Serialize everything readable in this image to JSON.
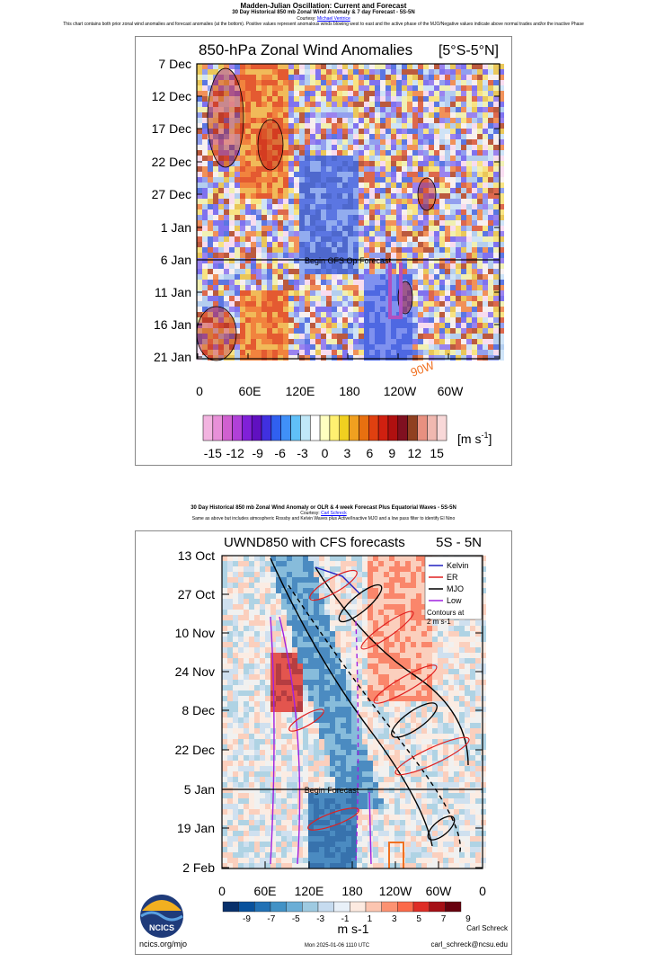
{
  "header": {
    "title": "Madden-Julian Oscillation: Current and Forecast",
    "subtitle": "30 Day Historical 850 mb Zonal Wind Anomaly & 7 day Forecast - 5S-5N",
    "courtesy_prefix": "Courtesy: ",
    "courtesy_name": "Michael Ventrice",
    "description": "This chart contains both prior zonal wind anomalies and forecast anomalies (at the bottom). Positive values represent anomalous winds blowing west to east and the active phase of the MJO/Negative values indicate above normal trades and/or the inactive Phase"
  },
  "section2": {
    "title": "30 Day Historical 850 mb Zonal Wind Anomaly or OLR & 4 week Forecast Plus Equatorial Waves - 5S-5N",
    "courtesy_prefix": "Courtesy: ",
    "courtesy_name": "Carl Schreck",
    "description": "Same as above but includes atmospheric Rossby and Kelvin Waves plus Active/Inactive MJO and a low pass filter to identify El Nino"
  },
  "chart_data": [
    {
      "type": "heatmap",
      "title": "850-hPa Zonal Wind Anomalies",
      "region": "[5°S-5°N]",
      "x_ticks": [
        "0",
        "60E",
        "120E",
        "180",
        "120W",
        "60W"
      ],
      "y_ticks": [
        "7 Dec",
        "12 Dec",
        "17 Dec",
        "22 Dec",
        "27 Dec",
        "1 Jan",
        "6 Jan",
        "11 Jan",
        "16 Jan",
        "21 Jan"
      ],
      "forecast_label": "Begin GFS Op Forecast",
      "annotation": "90W",
      "colorbar_ticks": [
        "-15",
        "-12",
        "-9",
        "-6",
        "-3",
        "0",
        "3",
        "6",
        "9",
        "12",
        "15"
      ],
      "colorbar_unit_base": "[m s",
      "colorbar_unit_exp": "-1",
      "colorbar_unit_end": "]",
      "colorbar_colors": [
        "#f2b4e0",
        "#e890d8",
        "#d060d0",
        "#b040d8",
        "#8020d8",
        "#6010c0",
        "#4030e0",
        "#3060f0",
        "#4090f8",
        "#60c0f8",
        "#c0e8f8",
        "#ffffff",
        "#ffffc0",
        "#fff070",
        "#f0d020",
        "#f0a020",
        "#e87010",
        "#e04010",
        "#d02010",
        "#b01010",
        "#801020",
        "#904020",
        "#e89080",
        "#f0b8b0",
        "#f8d8d8"
      ]
    },
    {
      "type": "heatmap",
      "title": "UWND850 with CFS forecasts",
      "region": "5S - 5N",
      "x_ticks": [
        "0",
        "60E",
        "120E",
        "180",
        "120W",
        "60W",
        "0"
      ],
      "y_ticks": [
        "13 Oct",
        "27 Oct",
        "10 Nov",
        "24 Nov",
        "8 Dec",
        "22 Dec",
        "5 Jan",
        "19 Jan",
        "2 Feb"
      ],
      "forecast_label": "Begin Forecast",
      "legend": [
        {
          "name": "Kelvin",
          "color": "#2020c0"
        },
        {
          "name": "ER",
          "color": "#e02020"
        },
        {
          "name": "MJO",
          "color": "#000000"
        },
        {
          "name": "Low",
          "color": "#a020e0"
        }
      ],
      "legend_note": [
        "Contours at",
        "2 m s-1"
      ],
      "colorbar_ticks": [
        "-9",
        "-7",
        "-5",
        "-3",
        "-1",
        "1",
        "3",
        "5",
        "7",
        "9"
      ],
      "colorbar_unit": "m s-1",
      "colorbar_colors": [
        "#08306b",
        "#08519c",
        "#2171b5",
        "#4292c6",
        "#6baed6",
        "#9ecae1",
        "#c6dbef",
        "#e8f0f8",
        "#fdeae0",
        "#fcc5b0",
        "#fc9272",
        "#fb6a4a",
        "#de2d26",
        "#a50f15",
        "#67000d"
      ]
    }
  ],
  "footer": {
    "logo_text": "NCICS",
    "site": "ncics.org/mjo",
    "timestamp": "Mon 2025-01-06 1110 UTC",
    "author": "Carl Schreck",
    "email": "carl_schreck@ncsu.edu"
  }
}
